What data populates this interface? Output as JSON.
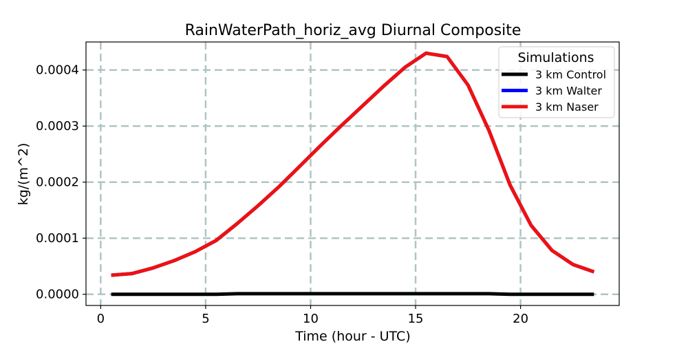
{
  "chart_data": {
    "type": "line",
    "title": "RainWaterPath_horiz_avg Diurnal Composite",
    "xlabel": "Time (hour - UTC)",
    "ylabel": "kg/(m^2)",
    "xlim": [
      -0.7,
      24.7
    ],
    "ylim": [
      -2e-05,
      0.00045
    ],
    "xticks": [
      0,
      5,
      10,
      15,
      20
    ],
    "xtick_labels": [
      "0",
      "5",
      "10",
      "15",
      "20"
    ],
    "yticks": [
      0.0,
      0.0001,
      0.0002,
      0.0003,
      0.0004
    ],
    "ytick_labels": [
      "0.0000",
      "0.0001",
      "0.0002",
      "0.0003",
      "0.0004"
    ],
    "grid": true,
    "legend": {
      "title": "Simulations",
      "position": "top-right"
    },
    "x": [
      0.5,
      1.5,
      2.5,
      3.5,
      4.5,
      5.5,
      6.5,
      7.5,
      8.5,
      9.5,
      10.5,
      11.5,
      12.5,
      13.5,
      14.5,
      15.5,
      16.5,
      17.5,
      18.5,
      19.5,
      20.5,
      21.5,
      22.5,
      23.5
    ],
    "series": [
      {
        "name": "3 km Control",
        "color": "#000000",
        "values": [
          0.0,
          0.0,
          0.0,
          0.0,
          0.0,
          0.0,
          1e-06,
          1e-06,
          1e-06,
          1e-06,
          1e-06,
          1e-06,
          1e-06,
          1e-06,
          1e-06,
          1e-06,
          1e-06,
          1e-06,
          1e-06,
          0.0,
          0.0,
          0.0,
          0.0,
          0.0
        ]
      },
      {
        "name": "3 km Walter",
        "color": "#0000ff",
        "values": [
          3.4e-05,
          3.7e-05,
          4.7e-05,
          6e-05,
          7.6e-05,
          9.6e-05,
          0.000126,
          0.000158,
          0.000192,
          0.000229,
          0.000266,
          0.000302,
          0.000337,
          0.000372,
          0.000405,
          0.00043,
          0.000424,
          0.000373,
          0.000292,
          0.000195,
          0.000123,
          7.8e-05,
          5.3e-05,
          4e-05
        ]
      },
      {
        "name": "3 km Naser",
        "color": "#ee1111",
        "values": [
          3.4e-05,
          3.7e-05,
          4.7e-05,
          6e-05,
          7.6e-05,
          9.6e-05,
          0.000126,
          0.000158,
          0.000192,
          0.000229,
          0.000266,
          0.000302,
          0.000337,
          0.000372,
          0.000405,
          0.00043,
          0.000424,
          0.000373,
          0.000292,
          0.000195,
          0.000123,
          7.8e-05,
          5.3e-05,
          4e-05
        ]
      }
    ]
  }
}
